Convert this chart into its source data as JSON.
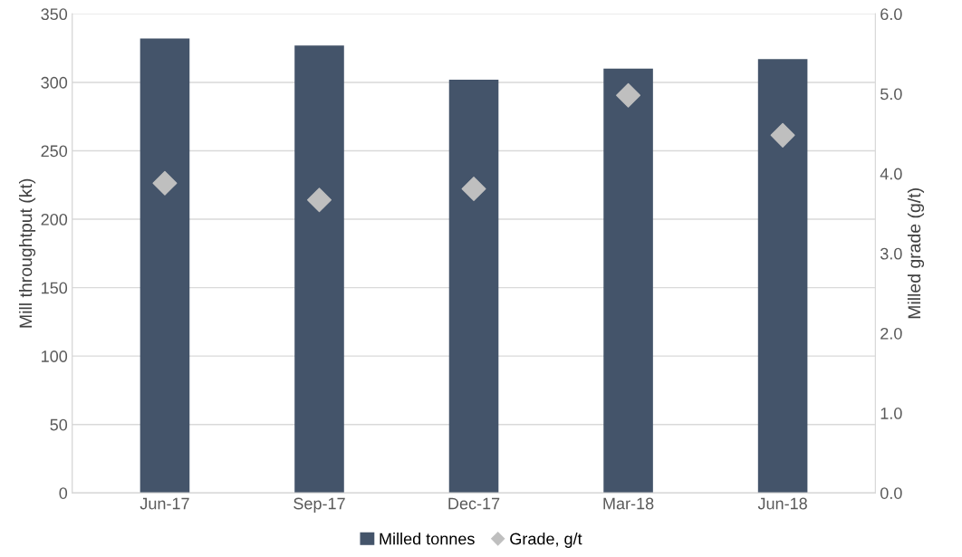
{
  "chart_data": {
    "type": "bar",
    "categories": [
      "Jun-17",
      "Sep-17",
      "Dec-17",
      "Mar-18",
      "Jun-18"
    ],
    "ylabel": "Mill throughtput (kt)",
    "y2label": "Milled grade (g/t)",
    "series": [
      {
        "name": "Milled tonnes",
        "color": "#44546a",
        "values": [
          332,
          327,
          302,
          310,
          317
        ]
      },
      {
        "name": "Grade, g/t",
        "type": "scatter",
        "axis": "y2",
        "color": "#bfbfbf",
        "marker": "diamond",
        "values": [
          3.88,
          3.67,
          3.81,
          4.98,
          4.48
        ]
      }
    ],
    "ylim": [
      0,
      350
    ],
    "yticks": [
      0,
      50,
      100,
      150,
      200,
      250,
      300,
      350
    ],
    "y2lim": [
      0,
      6
    ],
    "y2ticks": [
      {
        "value": 0,
        "label": "0.0"
      },
      {
        "value": 1,
        "label": "1.0"
      },
      {
        "value": 2,
        "label": "2.0"
      },
      {
        "value": 3,
        "label": "3.0"
      },
      {
        "value": 4,
        "label": "4.0"
      },
      {
        "value": 5,
        "label": "5.0"
      },
      {
        "value": 6,
        "label": "6.0"
      }
    ],
    "grid": "y",
    "legend": "bottom"
  }
}
